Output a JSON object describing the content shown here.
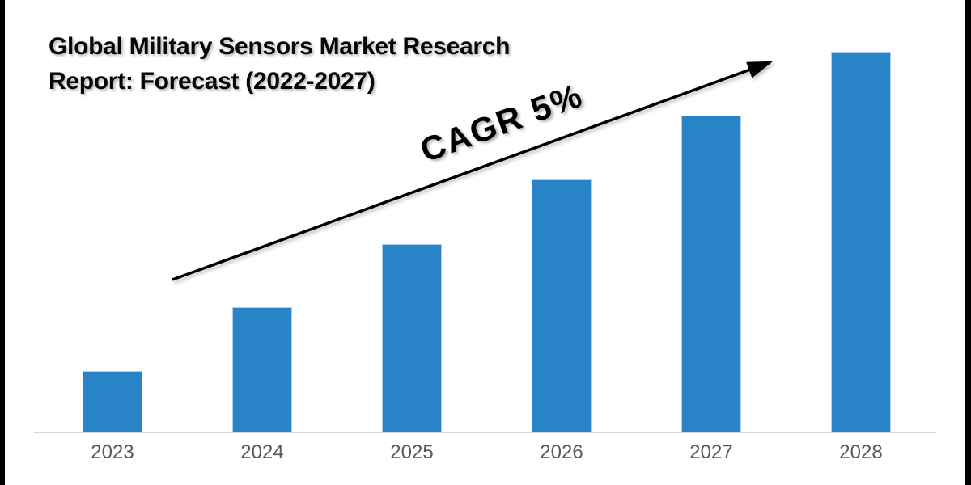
{
  "title": {
    "line1": "Global Military Sensors Market Research",
    "line2": "Report: Forecast (2022-2027)"
  },
  "annotation": {
    "label": "CAGR 5%"
  },
  "chart_data": {
    "type": "bar",
    "title": "Global Military Sensors Market Research Report: Forecast (2022-2027)",
    "categories": [
      "2023",
      "2024",
      "2025",
      "2026",
      "2027",
      "2028"
    ],
    "values": [
      76,
      155,
      233,
      313,
      392,
      471
    ],
    "values_note": "no y-axis or data labels shown; values are relative bar heights (px), roughly linear growth",
    "annotation": "CAGR 5%",
    "xlabel": "",
    "ylabel": "",
    "grid": false,
    "legend": "none",
    "bar_color": "#2884C6",
    "axis_line_color": "#D9D9D9",
    "tick_label_color": "#595959",
    "title_color": "#060606",
    "arrow_color": "#000000"
  }
}
